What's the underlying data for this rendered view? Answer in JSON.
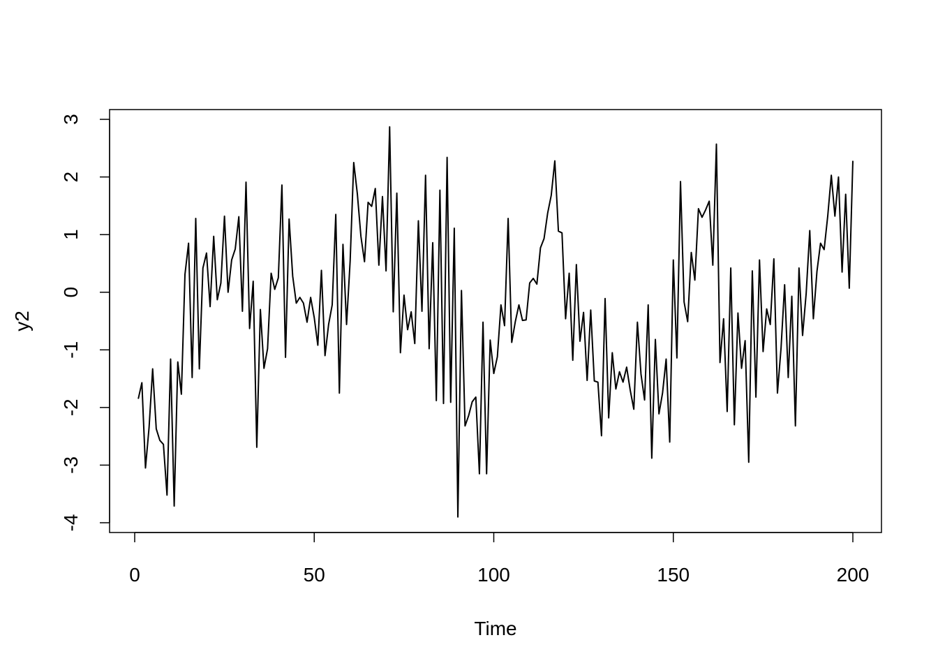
{
  "chart_data": {
    "type": "line",
    "title": "",
    "xlabel": "Time",
    "ylabel": "y2",
    "xlim": [
      0,
      200
    ],
    "ylim": [
      -4,
      3
    ],
    "x_ticks": [
      0,
      50,
      100,
      150,
      200
    ],
    "y_ticks": [
      -4,
      -3,
      -2,
      -1,
      0,
      1,
      2,
      3
    ],
    "x_tick_labels": [
      "0",
      "50",
      "100",
      "150",
      "200"
    ],
    "y_tick_labels": [
      "-4",
      "-3",
      "-2",
      "-1",
      "0",
      "1",
      "2",
      "3"
    ],
    "grid": false,
    "series": [
      {
        "values": [
          -1.85,
          -1.57,
          -3.05,
          -2.35,
          -1.33,
          -2.37,
          -2.57,
          -2.64,
          -3.52,
          -1.16,
          -3.71,
          -1.21,
          -1.77,
          0.31,
          0.85,
          -1.48,
          1.28,
          -1.33,
          0.42,
          0.68,
          -0.25,
          0.97,
          -0.13,
          0.16,
          1.32,
          0.0,
          0.56,
          0.75,
          1.31,
          -0.33,
          1.91,
          -0.63,
          0.19,
          -2.69,
          -0.3,
          -1.32,
          -0.98,
          0.33,
          0.05,
          0.25,
          1.86,
          -1.13,
          1.27,
          0.28,
          -0.19,
          -0.09,
          -0.19,
          -0.52,
          -0.09,
          -0.44,
          -0.92,
          0.38,
          -1.1,
          -0.56,
          -0.22,
          1.35,
          -1.75,
          0.83,
          -0.56,
          0.54,
          2.25,
          1.71,
          0.97,
          0.53,
          1.56,
          1.49,
          1.8,
          0.47,
          1.66,
          0.37,
          2.87,
          -0.34,
          1.72,
          -1.05,
          -0.05,
          -0.65,
          -0.34,
          -0.89,
          1.24,
          -0.33,
          2.03,
          -0.98,
          0.86,
          -1.88,
          1.77,
          -1.93,
          2.34,
          -1.91,
          1.11,
          -3.9,
          0.03,
          -2.32,
          -2.14,
          -1.9,
          -1.82,
          -3.15,
          -0.52,
          -3.15,
          -0.83,
          -1.41,
          -1.12,
          -0.22,
          -0.58,
          1.28,
          -0.87,
          -0.51,
          -0.22,
          -0.49,
          -0.48,
          0.16,
          0.24,
          0.14,
          0.77,
          0.93,
          1.37,
          1.68,
          2.28,
          1.06,
          1.03,
          -0.46,
          0.33,
          -1.18,
          0.48,
          -0.85,
          -0.35,
          -1.53,
          -0.31,
          -1.54,
          -1.56,
          -2.49,
          -0.11,
          -2.18,
          -1.05,
          -1.68,
          -1.38,
          -1.56,
          -1.3,
          -1.7,
          -2.03,
          -0.52,
          -1.42,
          -1.87,
          -0.22,
          -2.88,
          -0.82,
          -2.11,
          -1.75,
          -1.16,
          -2.6,
          0.56,
          -1.14,
          1.92,
          -0.17,
          -0.51,
          0.69,
          0.21,
          1.45,
          1.3,
          1.43,
          1.58,
          0.47,
          2.57,
          -1.22,
          -0.46,
          -2.07,
          0.42,
          -2.3,
          -0.36,
          -1.32,
          -0.84,
          -2.95,
          0.37,
          -1.82,
          0.56,
          -1.03,
          -0.29,
          -0.56,
          0.58,
          -1.75,
          -0.97,
          0.13,
          -1.48,
          -0.07,
          -2.32,
          0.42,
          -0.75,
          -0.02,
          1.07,
          -0.46,
          0.36,
          0.85,
          0.74,
          1.32,
          2.03,
          1.32,
          2.0,
          0.35,
          1.7,
          0.07,
          2.28
        ]
      }
    ]
  }
}
